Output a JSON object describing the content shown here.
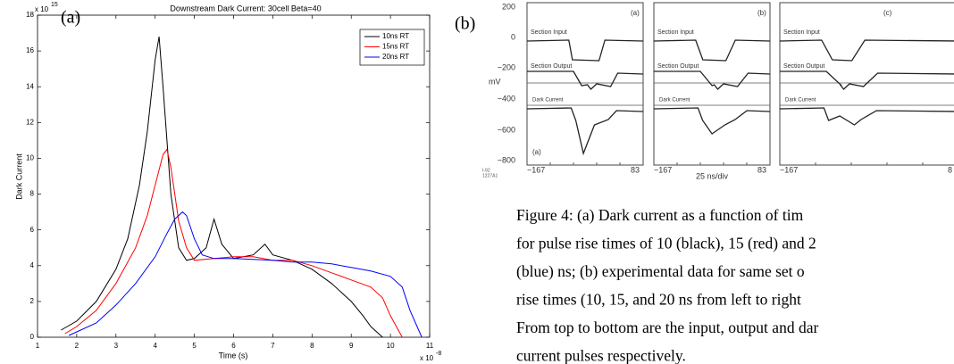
{
  "chart_data": {
    "type": "line",
    "panel_label": "(a)",
    "title": "Downstream Dark Current: 30cell Beta=40",
    "x_label": "Time (s)",
    "y_label": "Dark Current",
    "x_multiplier": "x 10",
    "x_exponent": "-8",
    "y_multiplier": "x 10",
    "y_exponent": "15",
    "xlim": [
      1,
      11
    ],
    "xticks": [
      1,
      2,
      3,
      4,
      5,
      6,
      7,
      8,
      9,
      10,
      11
    ],
    "ylim": [
      0,
      18
    ],
    "yticks": [
      0,
      2,
      4,
      6,
      8,
      10,
      12,
      14,
      16,
      18
    ],
    "legend": "upper right",
    "grid": false,
    "series": [
      {
        "name": "10ns RT",
        "color": "#000000",
        "x": [
          1.6,
          2,
          2.5,
          3,
          3.3,
          3.6,
          3.8,
          4.0,
          4.1,
          4.2,
          4.4,
          4.6,
          4.8,
          5.0,
          5.3,
          5.5,
          5.7,
          6.0,
          6.5,
          6.8,
          7.0,
          7.5,
          8.0,
          8.5,
          9.0,
          9.3,
          9.5,
          9.7,
          9.8
        ],
        "values": [
          0.4,
          0.9,
          2.0,
          3.8,
          5.5,
          8.5,
          11.5,
          15.5,
          16.8,
          14,
          8,
          5,
          4.3,
          4.4,
          5,
          6.6,
          5.2,
          4.4,
          4.6,
          5.2,
          4.6,
          4.3,
          3.8,
          3.0,
          2.0,
          1.2,
          0.6,
          0.2,
          0
        ]
      },
      {
        "name": "15ns RT",
        "color": "#ff0000",
        "x": [
          1.7,
          2,
          2.5,
          3,
          3.5,
          3.8,
          4.0,
          4.2,
          4.3,
          4.4,
          4.6,
          4.8,
          5.0,
          5.5,
          6,
          6.5,
          7,
          7.5,
          8,
          8.5,
          9,
          9.5,
          9.8,
          10,
          10.2,
          10.3
        ],
        "values": [
          0.2,
          0.6,
          1.5,
          3.0,
          5.0,
          6.8,
          8.5,
          10.2,
          10.5,
          9.5,
          6.5,
          5.0,
          4.3,
          4.4,
          4.5,
          4.5,
          4.3,
          4.3,
          4.0,
          3.6,
          3.2,
          2.8,
          2.2,
          1.2,
          0.4,
          0
        ]
      },
      {
        "name": "20ns RT",
        "color": "#0000ff",
        "x": [
          1.8,
          2,
          2.5,
          3,
          3.5,
          4,
          4.3,
          4.5,
          4.7,
          4.8,
          5,
          5.2,
          5.5,
          6,
          7,
          7.5,
          8,
          8.5,
          9,
          9.5,
          10,
          10.3,
          10.5,
          10.7,
          10.8
        ],
        "values": [
          0.1,
          0.3,
          0.8,
          1.8,
          3.0,
          4.5,
          5.8,
          6.6,
          7.0,
          6.8,
          5.5,
          4.6,
          4.4,
          4.4,
          4.3,
          4.2,
          4.2,
          4.1,
          3.9,
          3.7,
          3.4,
          2.8,
          1.5,
          0.5,
          0
        ]
      }
    ]
  },
  "panel_b": {
    "panel_label": "(b)",
    "unit": "mV",
    "y_labels": [
      "200",
      "0",
      "−200",
      "−400",
      "−600",
      "−800"
    ],
    "x_axis_note": "25 ns/div",
    "figure_id": [
      "I-92",
      "1227A1"
    ],
    "scopes": [
      {
        "label": "(a)",
        "input": "Section Input",
        "output": "Section Output",
        "dark": "Dark Current",
        "left": "−167",
        "right": "83",
        "inner": "(a)"
      },
      {
        "label": "(b)",
        "input": "Section Input",
        "output": "Section Output",
        "dark": "Dark Current",
        "left": "−167",
        "right": "83"
      },
      {
        "label": "(c)",
        "input": "Section Input",
        "output": "Section Output",
        "dark": "Dark Current",
        "left": "−167",
        "right": "8"
      }
    ]
  },
  "caption": [
    "Figure 4: (a) Dark current as a function of tim",
    "for pulse rise times of 10 (black), 15 (red) and 2",
    "(blue) ns; (b) experimental data for same set o",
    "rise times (10, 15, and 20 ns from left to right",
    "From top to bottom are the input, output and dar",
    "current pulses respectively."
  ]
}
